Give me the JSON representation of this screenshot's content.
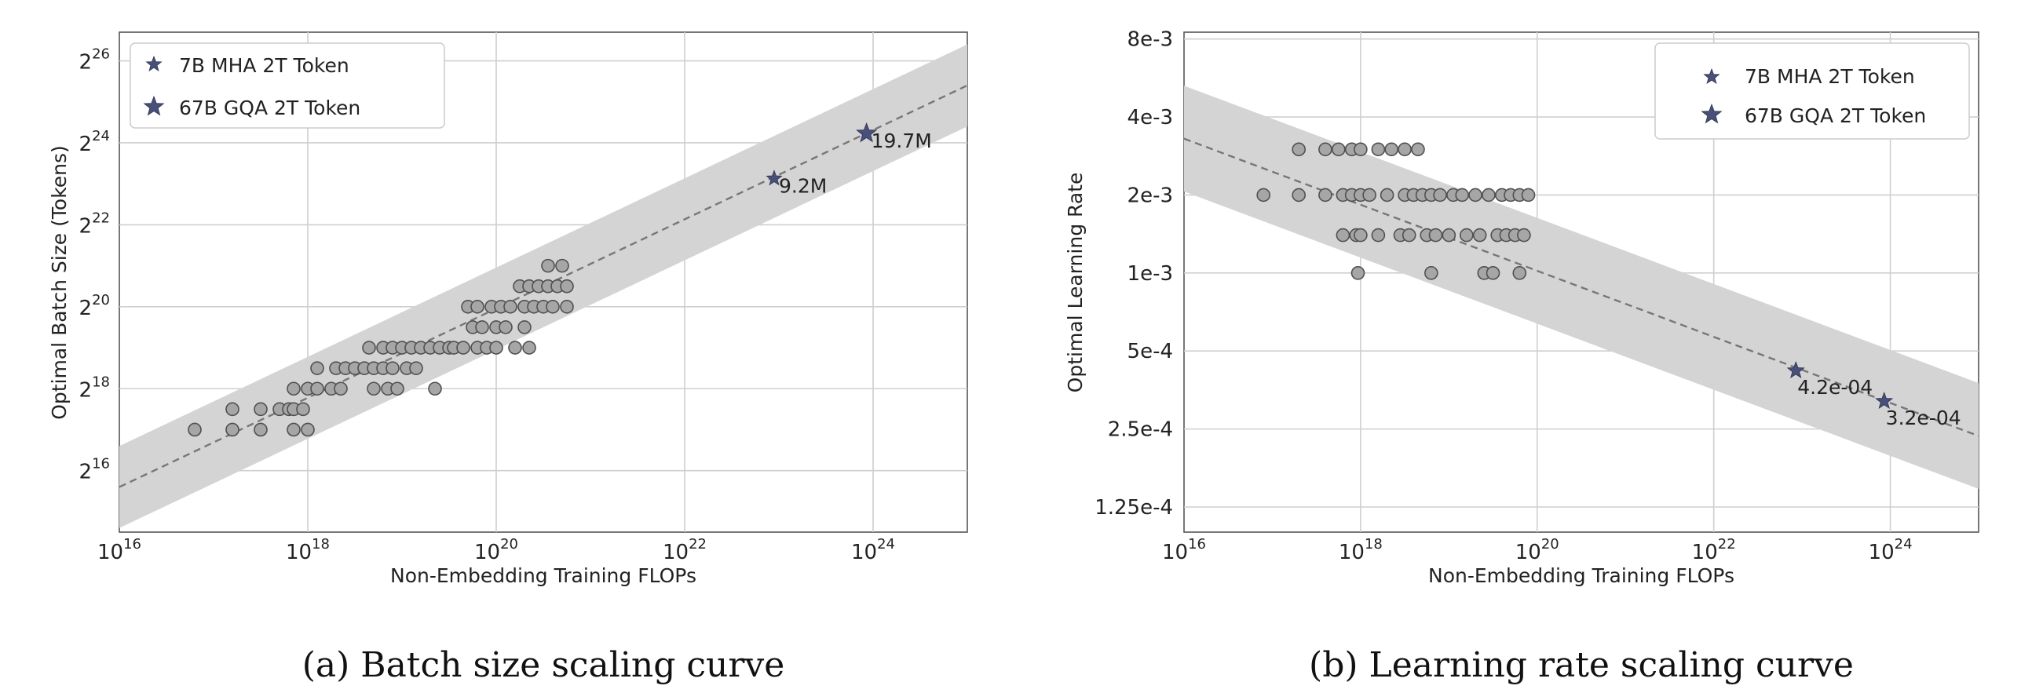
{
  "colors": {
    "point_fill": "#a6a6a6",
    "star_fill": "#48507a",
    "band": "#d4d4d4",
    "fit_line": "#777777"
  },
  "chart_data": [
    {
      "type": "scatter",
      "caption": "(a)  Batch size scaling curve",
      "xlabel": "Non-Embedding Training FLOPs",
      "ylabel": "Optimal Batch Size (Tokens)",
      "x_scale": "log10",
      "y_scale": "log2",
      "xlim_exp10": [
        16,
        25
      ],
      "ylim_exp2": [
        14.5,
        26.7
      ],
      "x_ticks": [
        {
          "base": "10",
          "exp": "16"
        },
        {
          "base": "10",
          "exp": "18"
        },
        {
          "base": "10",
          "exp": "20"
        },
        {
          "base": "10",
          "exp": "22"
        },
        {
          "base": "10",
          "exp": "24"
        }
      ],
      "y_ticks": [
        {
          "base": "2",
          "exp": "16"
        },
        {
          "base": "2",
          "exp": "18"
        },
        {
          "base": "2",
          "exp": "20"
        },
        {
          "base": "2",
          "exp": "22"
        },
        {
          "base": "2",
          "exp": "24"
        },
        {
          "base": "2",
          "exp": "26"
        }
      ],
      "grid": true,
      "legend_position": "top-left",
      "fit": {
        "x_exp10": [
          16,
          25
        ],
        "y_exp2": [
          15.6,
          25.4
        ]
      },
      "band_halfwidth_log2": 1.0,
      "points": [
        [
          16.8,
          17.0
        ],
        [
          17.2,
          17.0
        ],
        [
          17.2,
          17.5
        ],
        [
          17.5,
          17.0
        ],
        [
          17.5,
          17.5
        ],
        [
          17.7,
          17.5
        ],
        [
          17.8,
          17.5
        ],
        [
          17.85,
          17.0
        ],
        [
          17.85,
          17.5
        ],
        [
          17.85,
          18.0
        ],
        [
          17.95,
          17.5
        ],
        [
          18.0,
          17.0
        ],
        [
          18.0,
          18.0
        ],
        [
          18.1,
          18.0
        ],
        [
          18.1,
          18.5
        ],
        [
          18.25,
          18.0
        ],
        [
          18.3,
          18.5
        ],
        [
          18.35,
          18.0
        ],
        [
          18.4,
          18.5
        ],
        [
          18.5,
          18.5
        ],
        [
          18.6,
          18.5
        ],
        [
          18.65,
          19.0
        ],
        [
          18.7,
          18.5
        ],
        [
          18.7,
          18.0
        ],
        [
          18.8,
          18.5
        ],
        [
          18.8,
          19.0
        ],
        [
          18.85,
          18.0
        ],
        [
          18.9,
          19.0
        ],
        [
          18.9,
          18.5
        ],
        [
          18.95,
          18.0
        ],
        [
          19.0,
          19.0
        ],
        [
          19.05,
          18.5
        ],
        [
          19.1,
          19.0
        ],
        [
          19.15,
          18.5
        ],
        [
          19.2,
          19.0
        ],
        [
          19.3,
          19.0
        ],
        [
          19.35,
          18.0
        ],
        [
          19.4,
          19.0
        ],
        [
          19.5,
          19.0
        ],
        [
          19.55,
          19.0
        ],
        [
          19.65,
          19.0
        ],
        [
          19.7,
          20.0
        ],
        [
          19.75,
          19.5
        ],
        [
          19.8,
          19.0
        ],
        [
          19.8,
          20.0
        ],
        [
          19.85,
          19.5
        ],
        [
          19.9,
          19.0
        ],
        [
          19.95,
          20.0
        ],
        [
          20.0,
          19.5
        ],
        [
          20.0,
          19.0
        ],
        [
          20.05,
          20.0
        ],
        [
          20.1,
          19.5
        ],
        [
          20.15,
          20.0
        ],
        [
          20.2,
          19.0
        ],
        [
          20.25,
          20.5
        ],
        [
          20.3,
          20.0
        ],
        [
          20.3,
          19.5
        ],
        [
          20.35,
          20.5
        ],
        [
          20.4,
          20.0
        ],
        [
          20.45,
          20.5
        ],
        [
          20.5,
          20.0
        ],
        [
          20.55,
          20.5
        ],
        [
          20.55,
          21.0
        ],
        [
          20.6,
          20.0
        ],
        [
          20.65,
          20.5
        ],
        [
          20.7,
          21.0
        ],
        [
          20.75,
          20.5
        ],
        [
          20.75,
          20.0
        ],
        [
          20.35,
          19.0
        ]
      ],
      "stars": [
        {
          "name": "7B MHA 2T Token",
          "x_exp10": 22.95,
          "y_exp2": 23.13,
          "label": "9.2M"
        },
        {
          "name": "67B GQA 2T Token",
          "x_exp10": 23.93,
          "y_exp2": 24.23,
          "label": "19.7M"
        }
      ]
    },
    {
      "type": "scatter",
      "caption": "(b)  Learning rate scaling curve",
      "xlabel": "Non-Embedding Training FLOPs",
      "ylabel": "Optimal Learning Rate",
      "x_scale": "log10",
      "y_scale": "log2",
      "xlim_exp10": [
        16,
        25
      ],
      "ylim": [
        0.0001,
        0.0085
      ],
      "x_ticks": [
        {
          "base": "10",
          "exp": "16"
        },
        {
          "base": "10",
          "exp": "18"
        },
        {
          "base": "10",
          "exp": "20"
        },
        {
          "base": "10",
          "exp": "22"
        },
        {
          "base": "10",
          "exp": "24"
        }
      ],
      "y_ticks": [
        {
          "label": "8e-3",
          "value": 0.008
        },
        {
          "label": "4e-3",
          "value": 0.004
        },
        {
          "label": "2e-3",
          "value": 0.002
        },
        {
          "label": "1e-3",
          "value": 0.001
        },
        {
          "label": "5e-4",
          "value": 0.0005
        },
        {
          "label": "2.5e-4",
          "value": 0.00025
        },
        {
          "label": "1.25e-4",
          "value": 0.000125
        }
      ],
      "grid": true,
      "legend_position": "top-right",
      "fit": {
        "x_exp10": [
          16,
          25
        ],
        "y": [
          0.0033,
          0.000235
        ]
      },
      "band_factor": 1.6,
      "points": [
        [
          16.9,
          0.002
        ],
        [
          17.3,
          0.002
        ],
        [
          17.3,
          0.003
        ],
        [
          17.6,
          0.003
        ],
        [
          17.6,
          0.002
        ],
        [
          17.75,
          0.003
        ],
        [
          17.8,
          0.002
        ],
        [
          17.8,
          0.0014
        ],
        [
          17.9,
          0.003
        ],
        [
          17.9,
          0.002
        ],
        [
          17.95,
          0.0014
        ],
        [
          18.0,
          0.003
        ],
        [
          18.0,
          0.002
        ],
        [
          18.0,
          0.0014
        ],
        [
          17.97,
          0.001
        ],
        [
          18.1,
          0.002
        ],
        [
          18.2,
          0.003
        ],
        [
          18.2,
          0.0014
        ],
        [
          18.3,
          0.002
        ],
        [
          18.35,
          0.003
        ],
        [
          18.45,
          0.0014
        ],
        [
          18.5,
          0.003
        ],
        [
          18.5,
          0.002
        ],
        [
          18.55,
          0.0014
        ],
        [
          18.6,
          0.002
        ],
        [
          18.65,
          0.003
        ],
        [
          18.7,
          0.002
        ],
        [
          18.75,
          0.0014
        ],
        [
          18.8,
          0.001
        ],
        [
          18.8,
          0.002
        ],
        [
          18.85,
          0.0014
        ],
        [
          18.9,
          0.002
        ],
        [
          19.0,
          0.0014
        ],
        [
          19.05,
          0.002
        ],
        [
          19.15,
          0.002
        ],
        [
          19.2,
          0.0014
        ],
        [
          19.3,
          0.002
        ],
        [
          19.35,
          0.0014
        ],
        [
          19.4,
          0.001
        ],
        [
          19.45,
          0.002
        ],
        [
          19.5,
          0.001
        ],
        [
          19.55,
          0.0014
        ],
        [
          19.6,
          0.002
        ],
        [
          19.65,
          0.0014
        ],
        [
          19.7,
          0.002
        ],
        [
          19.75,
          0.0014
        ],
        [
          19.8,
          0.001
        ],
        [
          19.8,
          0.002
        ],
        [
          19.85,
          0.0014
        ],
        [
          19.9,
          0.002
        ]
      ],
      "stars": [
        {
          "name": "7B MHA 2T Token",
          "x_exp10": 22.93,
          "y": 0.00042,
          "label": "4.2e-04"
        },
        {
          "name": "67B GQA 2T Token",
          "x_exp10": 23.93,
          "y": 0.00032,
          "label": "3.2e-04"
        }
      ]
    }
  ]
}
